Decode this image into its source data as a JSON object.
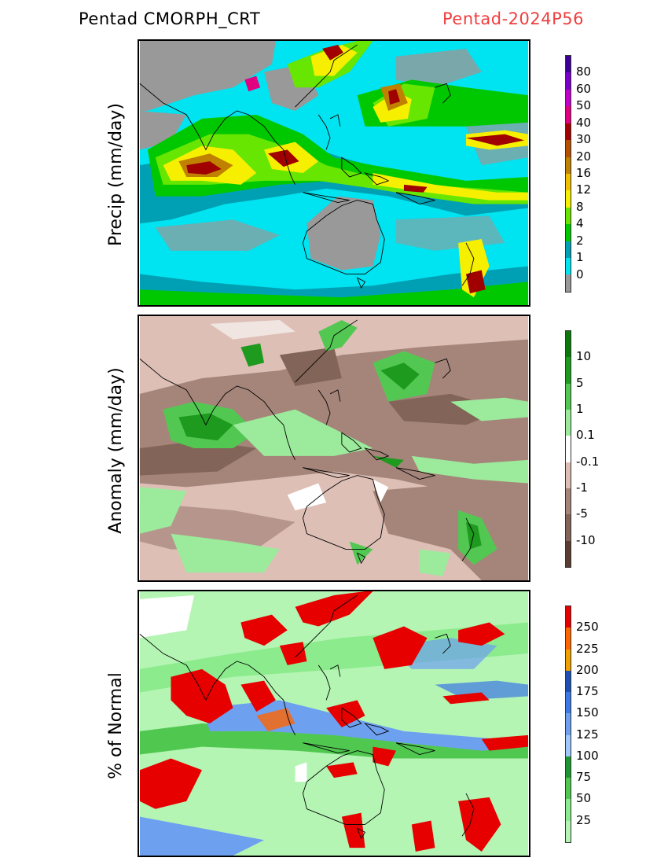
{
  "header": {
    "left_title": "Pentad CMORPH_CRT",
    "right_title": "Pentad-2024P56"
  },
  "panels": [
    {
      "name": "precip",
      "ylabel": "Precip (mm/day)",
      "colorbar": {
        "labels": [
          "0",
          "1",
          "2",
          "4",
          "8",
          "12",
          "16",
          "20",
          "30",
          "40",
          "50",
          "60",
          "80"
        ],
        "colors": [
          "#999999",
          "#00e3f0",
          "#00a0b4",
          "#00c800",
          "#66e600",
          "#f6f000",
          "#f0c000",
          "#c08000",
          "#b45000",
          "#a00000",
          "#e00080",
          "#c000c8",
          "#7800c8",
          "#3c0096"
        ]
      }
    },
    {
      "name": "anomaly",
      "ylabel": "Anomaly (mm/day)",
      "colorbar": {
        "labels": [
          "-10",
          "-5",
          "-1",
          "-0.1",
          "0.1",
          "1",
          "5",
          "10"
        ],
        "colors": [
          "#5a3c32",
          "#826458",
          "#a5857a",
          "#ddbfb6",
          "#ffffff",
          "#9ceb9c",
          "#52c852",
          "#1e9a1e",
          "#0a780a"
        ]
      }
    },
    {
      "name": "percent",
      "ylabel": "% of Normal",
      "colorbar": {
        "labels": [
          "25",
          "50",
          "75",
          "100",
          "125",
          "150",
          "175",
          "200",
          "225",
          "250"
        ],
        "colors": [
          "#b4f5b4",
          "#8ceb8c",
          "#50c850",
          "#1e9632",
          "#a0c8ff",
          "#6ea0f0",
          "#3c78e6",
          "#1e50b4",
          "#f0a000",
          "#ff6400",
          "#e60000"
        ]
      }
    }
  ]
}
